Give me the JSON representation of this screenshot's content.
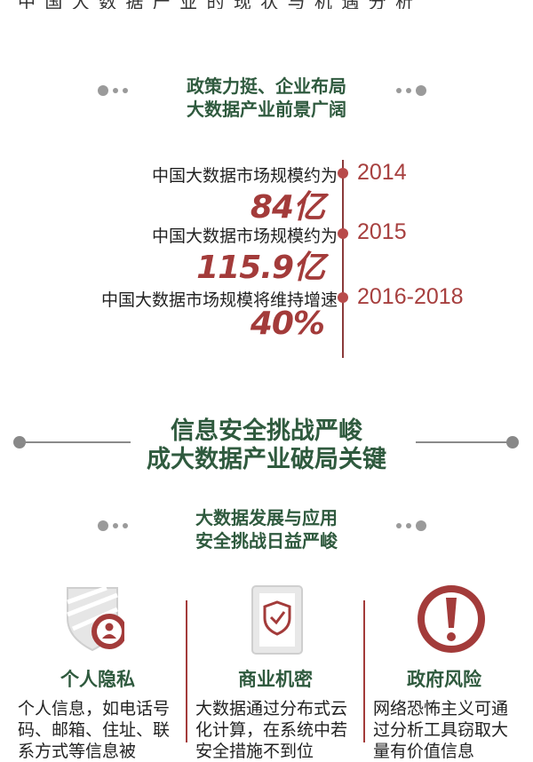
{
  "top_fragment": "中 国 大 数 据 产 业 的 现 状 与 机 遇 分 析",
  "section1": {
    "title_line1": "政策力挺、企业布局",
    "title_line2": "大数据产业前景广阔"
  },
  "timeline": [
    {
      "year": "2014",
      "text": "中国大数据市场规模约为",
      "value": "84亿"
    },
    {
      "year": "2015",
      "text": "中国大数据市场规模约为",
      "value": "115.9亿"
    },
    {
      "year": "2016-2018",
      "text": "中国大数据市场规模将维持增速",
      "value": "40%"
    }
  ],
  "section2": {
    "title_line1": "信息安全挑战严峻",
    "title_line2": "成大数据产业破局关键"
  },
  "section3": {
    "title_line1": "大数据发展与应用",
    "title_line2": "安全挑战日益严峻"
  },
  "columns": [
    {
      "title": "个人隐私",
      "text": "个人信息，如电话号码、邮箱、住址、联系方式等信息被",
      "icon": "shield-person-icon"
    },
    {
      "title": "商业机密",
      "text": "大数据通过分布式云化计算，在系统中若安全措施不到位",
      "icon": "document-check-icon"
    },
    {
      "title": "政府风险",
      "text": "网络恐怖主义可通过分析工具窃取大量有价值信息",
      "icon": "exclamation-icon"
    }
  ],
  "colors": {
    "green": "#2f5a3e",
    "red": "#a33b3a"
  }
}
